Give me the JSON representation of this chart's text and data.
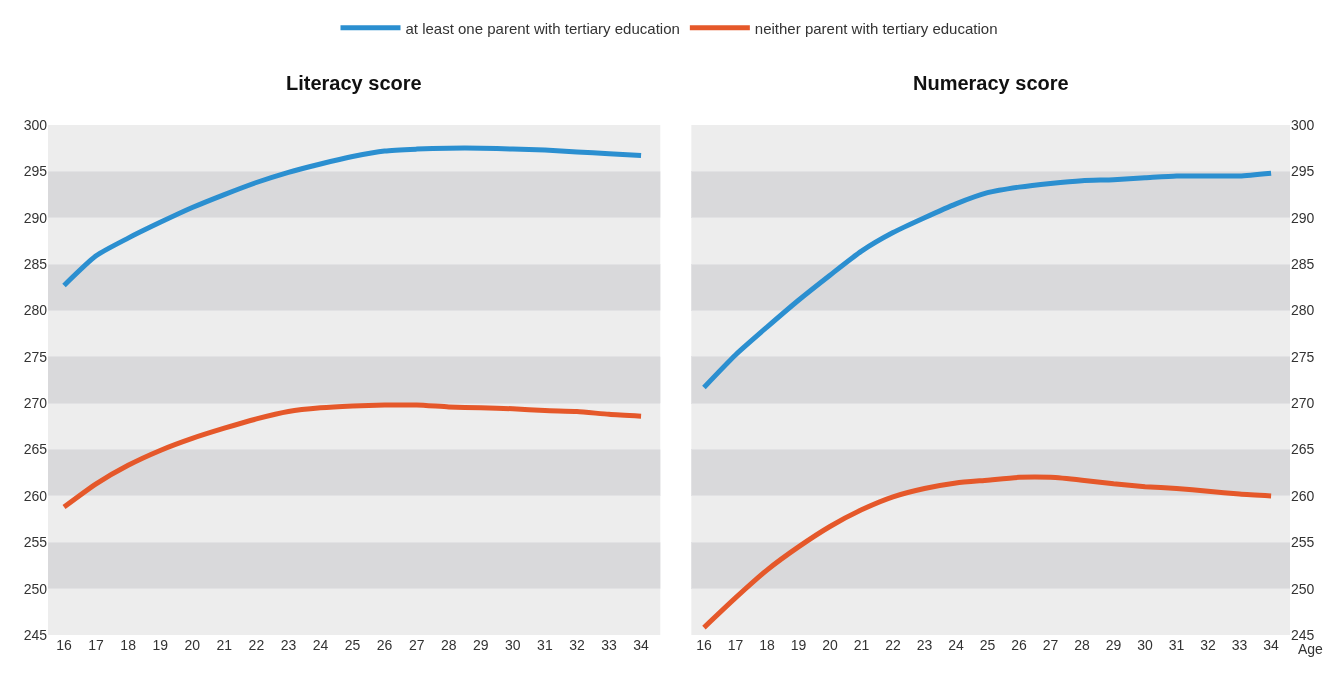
{
  "chart_data": [
    {
      "type": "line",
      "title": "Literacy score",
      "legend": "top",
      "grid": "y",
      "marker": "none",
      "x": [
        16,
        17,
        18,
        19,
        20,
        21,
        22,
        23,
        24,
        25,
        26,
        27,
        28,
        29,
        30,
        31,
        32,
        33,
        34
      ],
      "xlim": [
        15.5,
        34.6
      ],
      "xticks": [
        16,
        17,
        18,
        19,
        20,
        21,
        22,
        23,
        24,
        25,
        26,
        27,
        28,
        29,
        30,
        31,
        32,
        33,
        34
      ],
      "ylim": [
        245,
        300
      ],
      "yticks": [
        245,
        250,
        255,
        260,
        265,
        270,
        275,
        280,
        285,
        290,
        295,
        300
      ],
      "series": [
        {
          "name": "at least one parent with tertiary education",
          "color": "#2b8fd0",
          "values": [
            282.7,
            285.9,
            287.8,
            289.5,
            291.1,
            292.5,
            293.8,
            294.9,
            295.8,
            296.6,
            297.2,
            297.4,
            297.5,
            297.5,
            297.4,
            297.3,
            297.1,
            296.9,
            296.7
          ]
        },
        {
          "name": "neither parent with tertiary education",
          "color": "#e5582a",
          "values": [
            258.8,
            261.3,
            263.3,
            264.9,
            266.2,
            267.3,
            268.3,
            269.1,
            269.5,
            269.7,
            269.8,
            269.8,
            269.6,
            269.5,
            269.4,
            269.2,
            269.1,
            268.8,
            268.6
          ]
        }
      ]
    },
    {
      "type": "line",
      "title": "Numeracy score",
      "xlabel": "Age",
      "grid": "y",
      "marker": "none",
      "x": [
        16,
        17,
        18,
        19,
        20,
        21,
        22,
        23,
        24,
        25,
        26,
        27,
        28,
        29,
        30,
        31,
        32,
        33,
        34
      ],
      "xlim": [
        15.6,
        34.6
      ],
      "xticks": [
        16,
        17,
        18,
        19,
        20,
        21,
        22,
        23,
        24,
        25,
        26,
        27,
        28,
        29,
        30,
        31,
        32,
        33,
        34
      ],
      "ylim": [
        245,
        300
      ],
      "yticks": [
        245,
        250,
        255,
        260,
        265,
        270,
        275,
        280,
        285,
        290,
        295,
        300
      ],
      "series": [
        {
          "name": "at least one parent with tertiary education",
          "color": "#2b8fd0",
          "values": [
            271.7,
            275.2,
            278.2,
            281.1,
            283.8,
            286.4,
            288.4,
            290.0,
            291.5,
            292.7,
            293.3,
            293.7,
            294.0,
            294.1,
            294.3,
            294.5,
            294.5,
            294.5,
            294.8
          ]
        },
        {
          "name": "neither parent with tertiary education",
          "color": "#e5582a",
          "values": [
            245.8,
            249.0,
            252.0,
            254.5,
            256.7,
            258.5,
            259.9,
            260.8,
            261.4,
            261.7,
            262.0,
            262.0,
            261.7,
            261.3,
            261.0,
            260.8,
            260.5,
            260.2,
            260.0
          ]
        }
      ]
    }
  ]
}
